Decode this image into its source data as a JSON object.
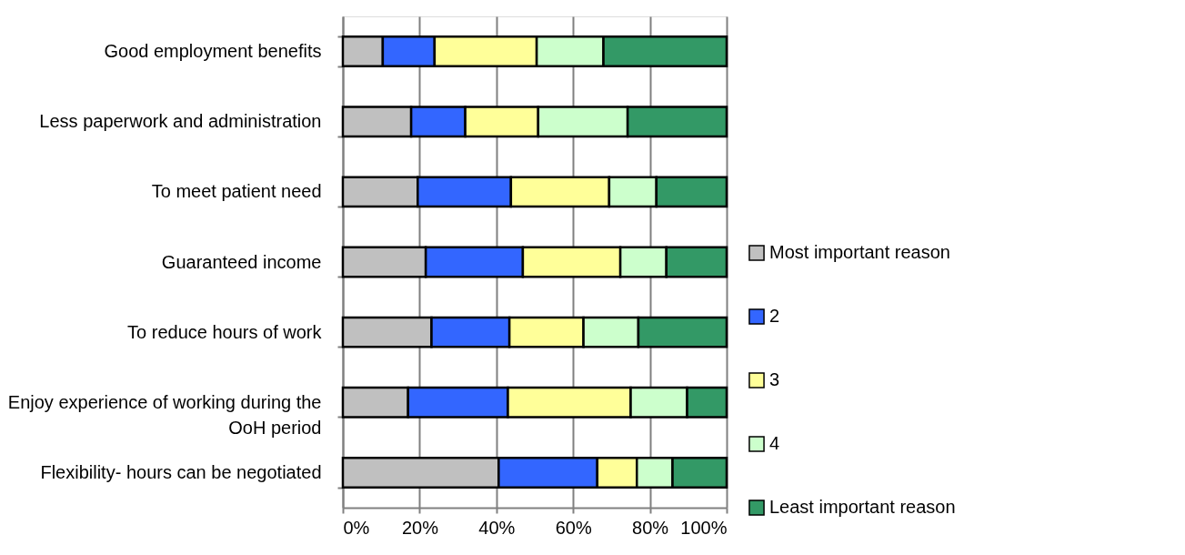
{
  "chart_data": {
    "type": "bar",
    "orientation": "horizontal",
    "stacked": true,
    "categories": [
      "Good employment benefits",
      "Less paperwork and administration",
      "To meet patient need",
      "Guaranteed income",
      "To reduce hours of work",
      "Enjoy experience of working during the\nOoH period",
      "Flexibility- hours can be negotiated"
    ],
    "series": [
      {
        "name": "Most important reason",
        "color": "#c0c0c0",
        "values": [
          10.4,
          17.8,
          19.5,
          21.6,
          23.1,
          17.0,
          40.6
        ]
      },
      {
        "name": "2",
        "color": "#3366ff",
        "values": [
          13.5,
          14.1,
          24.3,
          25.3,
          20.3,
          26.0,
          25.7
        ]
      },
      {
        "name": "3",
        "color": "#ffff99",
        "values": [
          26.6,
          19.0,
          25.6,
          25.4,
          19.3,
          32.0,
          10.3
        ]
      },
      {
        "name": "4",
        "color": "#ccffcc",
        "values": [
          17.4,
          23.3,
          12.3,
          12.0,
          14.3,
          14.7,
          9.3
        ]
      },
      {
        "name": "Least important reason",
        "color": "#339966",
        "values": [
          32.1,
          25.8,
          18.3,
          15.7,
          23.0,
          10.3,
          14.1
        ]
      }
    ],
    "xlim": [
      0,
      100
    ],
    "xticks": [
      {
        "value": 0,
        "label": "0%"
      },
      {
        "value": 20,
        "label": "20%"
      },
      {
        "value": 40,
        "label": "40%"
      },
      {
        "value": 60,
        "label": "60%"
      },
      {
        "value": 80,
        "label": "80%"
      },
      {
        "value": 100,
        "label": "100%"
      }
    ],
    "grid": "x",
    "legend": "right"
  }
}
